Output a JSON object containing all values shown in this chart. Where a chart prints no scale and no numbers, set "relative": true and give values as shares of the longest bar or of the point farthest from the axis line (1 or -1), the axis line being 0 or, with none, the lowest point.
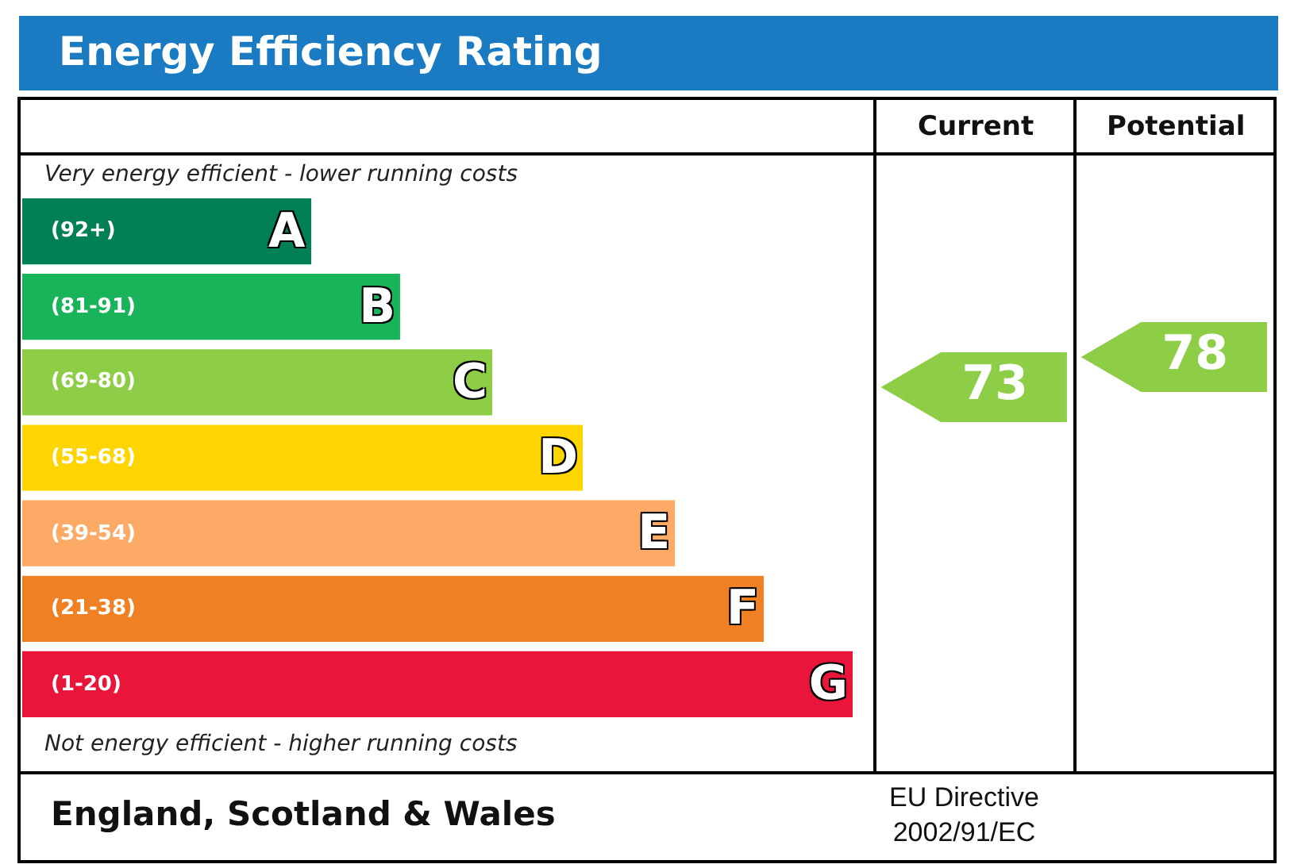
{
  "chart_data": [
    {
      "type": "bar",
      "orientation": "horizontal",
      "relative": true,
      "title": "Energy Efficiency Rating",
      "categories": [
        "A",
        "B",
        "C",
        "D",
        "E",
        "F",
        "G"
      ],
      "values": [
        0.348,
        0.455,
        0.566,
        0.675,
        0.786,
        0.893,
        1
      ],
      "colors": [
        "#008054",
        "#19b459",
        "#8dce46",
        "#ffd500",
        "#fcaa65",
        "#ef8023",
        "#e9153b"
      ],
      "annotations": [
        "(92+)",
        "(81-91)",
        "(69-80)",
        "(55-68)",
        "(39-54)",
        "(21-38)",
        "(1-20)",
        "Very energy efficient - lower running costs",
        "Not energy efficient - higher running costs",
        "England, Scotland & Wales",
        "EU Directive\n2002/91/EC"
      ]
    },
    {
      "type": "other",
      "categories": [
        "Current",
        "Potential"
      ],
      "values": [
        73,
        78
      ],
      "data_labels": true,
      "colors": [
        "#8dce46",
        "#8dce46"
      ]
    }
  ]
}
